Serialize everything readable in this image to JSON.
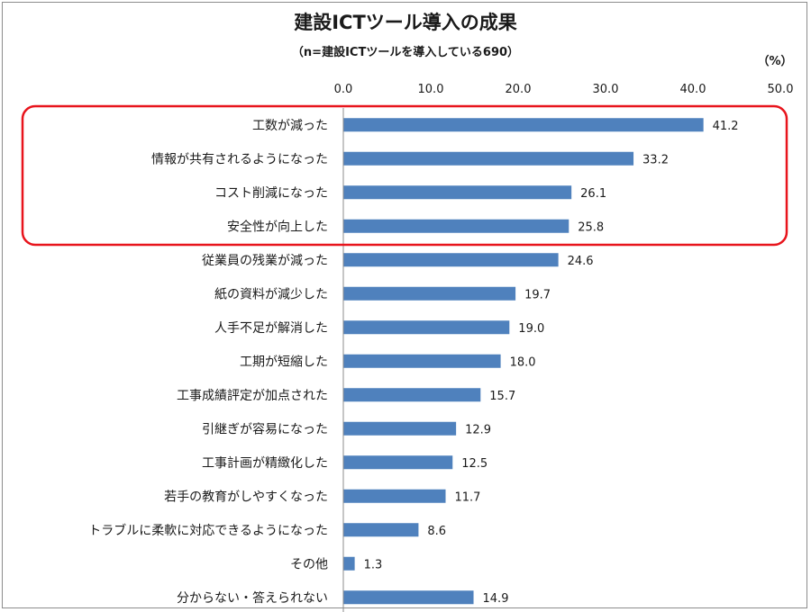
{
  "chart_data": {
    "type": "bar",
    "orientation": "horizontal",
    "title": "建設ICTツール導入の成果",
    "subtitle": "（n=建設ICTツールを導入している690）",
    "unit": "（%）",
    "xlim": [
      0,
      50
    ],
    "ticks": [
      "0.0",
      "10.0",
      "20.0",
      "30.0",
      "40.0",
      "50.0"
    ],
    "bar_color": "#4f81bd",
    "highlight_color": "#e8141c",
    "highlight_range": [
      0,
      3
    ],
    "categories": [
      "工数が減った",
      "情報が共有されるようになった",
      "コスト削減になった",
      "安全性が向上した",
      "従業員の残業が減った",
      "紙の資料が減少した",
      "人手不足が解消した",
      "工期が短縮した",
      "工事成績評定が加点された",
      "引継ぎが容易になった",
      "工事計画が精緻化した",
      "若手の教育がしやすくなった",
      "トラブルに柔軟に対応できるようになった",
      "その他",
      "分からない・答えられない"
    ],
    "values": [
      41.2,
      33.2,
      26.1,
      25.8,
      24.6,
      19.7,
      19.0,
      18.0,
      15.7,
      12.9,
      12.5,
      11.7,
      8.6,
      1.3,
      14.9
    ],
    "value_labels": [
      "41.2",
      "33.2",
      "26.1",
      "25.8",
      "24.6",
      "19.7",
      "19.0",
      "18.0",
      "15.7",
      "12.9",
      "12.5",
      "11.7",
      "8.6",
      "1.3",
      "14.9"
    ]
  }
}
